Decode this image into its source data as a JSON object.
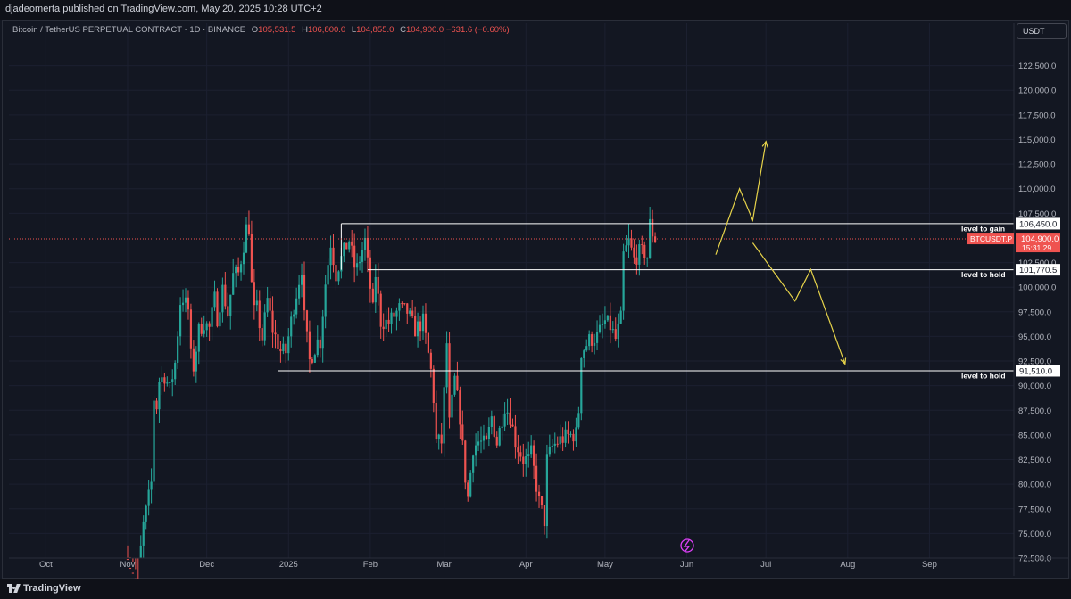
{
  "header": {
    "publish_line": "djadeomerta published on TradingView.com, May 20, 2025 10:28 UTC+2"
  },
  "legend": {
    "symbol": "Bitcoin / TetherUS PERPETUAL CONTRACT · 1D · BINANCE",
    "open_label": "O",
    "open": "105,531.5",
    "high_label": "H",
    "high": "106,800.0",
    "low_label": "L",
    "low": "104,855.0",
    "close_label": "C",
    "close": "104,900.0",
    "change": "−631.6 (−0.60%)"
  },
  "currency_button": "USDT",
  "footer": {
    "brand": "TradingView"
  },
  "colors": {
    "background": "#131722",
    "up": "#26a69a",
    "down": "#ef5350",
    "level": "#ffffff",
    "arrow": "#e6d34a",
    "grid": "#1c2030",
    "alert": "#e040fb"
  },
  "chart_data": {
    "type": "candlestick",
    "symbol": "BTCUSDT.P",
    "ylim": [
      72500,
      125000
    ],
    "y_ticks": [
      "122,500.0",
      "120,000.0",
      "117,500.0",
      "115,000.0",
      "112,500.0",
      "110,000.0",
      "107,500.0",
      "102,500.0",
      "100,000.0",
      "97,500.0",
      "95,000.0",
      "92,500.0",
      "90,000.0",
      "87,500.0",
      "85,000.0",
      "82,500.0",
      "80,000.0",
      "77,500.0",
      "75,000.0",
      "72,500.0"
    ],
    "x_ticks": [
      "Oct",
      "Nov",
      "Dec",
      "2025",
      "Feb",
      "Mar",
      "Apr",
      "May",
      "Jun",
      "Jul",
      "Aug",
      "Sep"
    ],
    "x_start": "2024-09-17",
    "x_end": "2025-10-03",
    "last_price": {
      "value": 104900,
      "label": "104,900.0",
      "tag": "BTCUSDT.P",
      "countdown": "15:31:29"
    },
    "price_path": [
      [
        "2024-11-01",
        72400
      ],
      [
        "2024-11-05",
        68900
      ],
      [
        "2024-11-06",
        73400
      ],
      [
        "2024-11-07",
        75800
      ],
      [
        "2024-11-10",
        80100
      ],
      [
        "2024-11-11",
        88700
      ],
      [
        "2024-11-12",
        87900
      ],
      [
        "2024-11-13",
        90500
      ],
      [
        "2024-11-15",
        91000
      ],
      [
        "2024-11-17",
        89600
      ],
      [
        "2024-11-19",
        92300
      ],
      [
        "2024-11-21",
        98500
      ],
      [
        "2024-11-22",
        98900
      ],
      [
        "2024-11-24",
        97700
      ],
      [
        "2024-11-25",
        93000
      ],
      [
        "2024-11-26",
        91900
      ],
      [
        "2024-11-28",
        95600
      ],
      [
        "2024-11-30",
        96400
      ],
      [
        "2024-12-02",
        95800
      ],
      [
        "2024-12-04",
        98800
      ],
      [
        "2024-12-05",
        96900
      ],
      [
        "2024-12-07",
        99800
      ],
      [
        "2024-12-09",
        97300
      ],
      [
        "2024-12-11",
        101200
      ],
      [
        "2024-12-13",
        101400
      ],
      [
        "2024-12-15",
        104300
      ],
      [
        "2024-12-16",
        106000
      ],
      [
        "2024-12-17",
        106100
      ],
      [
        "2024-12-18",
        100200
      ],
      [
        "2024-12-19",
        97500
      ],
      [
        "2024-12-20",
        97800
      ],
      [
        "2024-12-22",
        94800
      ],
      [
        "2024-12-24",
        98700
      ],
      [
        "2024-12-26",
        95700
      ],
      [
        "2024-12-29",
        93500
      ],
      [
        "2024-12-31",
        93400
      ],
      [
        "2025-01-03",
        98100
      ],
      [
        "2025-01-06",
        102000
      ],
      [
        "2025-01-07",
        96900
      ],
      [
        "2025-01-09",
        92500
      ],
      [
        "2025-01-12",
        94500
      ],
      [
        "2025-01-13",
        94500
      ],
      [
        "2025-01-15",
        100400
      ],
      [
        "2025-01-17",
        104500
      ],
      [
        "2025-01-19",
        101300
      ],
      [
        "2025-01-20",
        102200
      ],
      [
        "2025-01-22",
        103600
      ],
      [
        "2025-01-24",
        104800
      ],
      [
        "2025-01-26",
        102100
      ],
      [
        "2025-01-27",
        101900
      ],
      [
        "2025-01-30",
        104700
      ],
      [
        "2025-02-02",
        97600
      ],
      [
        "2025-02-03",
        101300
      ],
      [
        "2025-02-05",
        96500
      ],
      [
        "2025-02-08",
        96400
      ],
      [
        "2025-02-12",
        97800
      ],
      [
        "2025-02-15",
        97500
      ],
      [
        "2025-02-18",
        95700
      ],
      [
        "2025-02-21",
        96500
      ],
      [
        "2025-02-24",
        91500
      ],
      [
        "2025-02-25",
        88700
      ],
      [
        "2025-02-26",
        84300
      ],
      [
        "2025-02-28",
        84300
      ],
      [
        "2025-03-02",
        94300
      ],
      [
        "2025-03-03",
        86100
      ],
      [
        "2025-03-05",
        90600
      ],
      [
        "2025-03-07",
        86800
      ],
      [
        "2025-03-09",
        80700
      ],
      [
        "2025-03-10",
        78600
      ],
      [
        "2025-03-12",
        83700
      ],
      [
        "2025-03-14",
        84300
      ],
      [
        "2025-03-17",
        84000
      ],
      [
        "2025-03-19",
        86800
      ],
      [
        "2025-03-21",
        84200
      ],
      [
        "2025-03-24",
        88000
      ],
      [
        "2025-03-26",
        86900
      ],
      [
        "2025-03-28",
        84300
      ],
      [
        "2025-03-31",
        82500
      ],
      [
        "2025-04-02",
        82500
      ],
      [
        "2025-04-03",
        83100
      ],
      [
        "2025-04-06",
        78200
      ],
      [
        "2025-04-08",
        76300
      ],
      [
        "2025-04-09",
        82500
      ],
      [
        "2025-04-11",
        83800
      ],
      [
        "2025-04-14",
        84500
      ],
      [
        "2025-04-17",
        84900
      ],
      [
        "2025-04-20",
        85100
      ],
      [
        "2025-04-21",
        87500
      ],
      [
        "2025-04-22",
        93400
      ],
      [
        "2025-04-25",
        94600
      ],
      [
        "2025-04-28",
        95000
      ],
      [
        "2025-05-01",
        96500
      ],
      [
        "2025-05-03",
        96000
      ],
      [
        "2025-05-05",
        94700
      ],
      [
        "2025-05-07",
        96800
      ],
      [
        "2025-05-08",
        103200
      ],
      [
        "2025-05-10",
        104600
      ],
      [
        "2025-05-12",
        102800
      ],
      [
        "2025-05-14",
        103500
      ],
      [
        "2025-05-16",
        103500
      ],
      [
        "2025-05-17",
        103100
      ],
      [
        "2025-05-18",
        106400
      ],
      [
        "2025-05-19",
        105500
      ],
      [
        "2025-05-20",
        104900
      ]
    ],
    "levels": [
      {
        "price": 106450,
        "label": "106,450.0",
        "name": "level to gain",
        "from": "2025-01-21"
      },
      {
        "price": 101770.5,
        "label": "101,770.5",
        "name": "level to hold",
        "from": "2025-01-31"
      },
      {
        "price": 91510,
        "label": "91,510.0",
        "name": "level to hold",
        "from": "2024-12-28"
      }
    ],
    "projections": [
      {
        "name": "bullish-path",
        "points": [
          [
            "2025-06-12",
            103300
          ],
          [
            "2025-06-21",
            110000
          ],
          [
            "2025-06-26",
            106800
          ],
          [
            "2025-07-01",
            114800
          ]
        ]
      },
      {
        "name": "bearish-path",
        "points": [
          [
            "2025-06-26",
            104500
          ],
          [
            "2025-07-12",
            98600
          ],
          [
            "2025-07-18",
            101800
          ],
          [
            "2025-07-31",
            92200
          ]
        ]
      }
    ]
  }
}
